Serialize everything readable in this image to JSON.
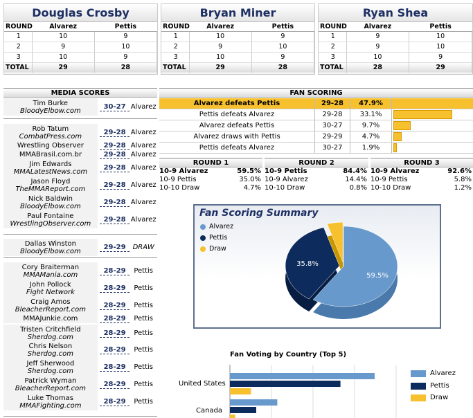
{
  "colors": {
    "alvarez": "#6899cc",
    "pettis": "#0d2b5c",
    "draw": "#f7c02e",
    "navy": "#1d2f63"
  },
  "judges": [
    {
      "name": "Douglas Crosby",
      "col_round": "ROUND",
      "col_a": "Alvarez",
      "col_b": "Pettis",
      "rounds": [
        [
          "1",
          "10",
          "9"
        ],
        [
          "2",
          "9",
          "10"
        ],
        [
          "3",
          "10",
          "9"
        ]
      ],
      "total": [
        "TOTAL",
        "29",
        "28"
      ]
    },
    {
      "name": "Bryan Miner",
      "col_round": "ROUND",
      "col_a": "Alvarez",
      "col_b": "Pettis",
      "rounds": [
        [
          "1",
          "10",
          "9"
        ],
        [
          "2",
          "9",
          "10"
        ],
        [
          "3",
          "10",
          "9"
        ]
      ],
      "total": [
        "TOTAL",
        "29",
        "28"
      ]
    },
    {
      "name": "Ryan Shea",
      "col_round": "ROUND",
      "col_a": "Alvarez",
      "col_b": "Pettis",
      "rounds": [
        [
          "1",
          "9",
          "10"
        ],
        [
          "2",
          "9",
          "10"
        ],
        [
          "3",
          "10",
          "9"
        ]
      ],
      "total": [
        "TOTAL",
        "28",
        "29"
      ]
    }
  ],
  "media": {
    "header": "MEDIA SCORES",
    "rows": [
      {
        "name": "Tim Burke",
        "outlet": "BloodyElbow.com",
        "score": "30-27",
        "winner": "Alvarez"
      },
      {
        "name": "Rob Tatum",
        "outlet": "CombatPress.com",
        "score": "29-28",
        "winner": "Alvarez"
      },
      {
        "name": "Wrestling Observer",
        "outlet": "",
        "score": "29-28",
        "winner": "Alvarez"
      },
      {
        "name": "MMABrasil.com.br",
        "outlet": "",
        "score": "29-28",
        "winner": "Alvarez"
      },
      {
        "name": "Jim Edwards",
        "outlet": "MMALatestNews.com",
        "score": "29-28",
        "winner": "Alvarez"
      },
      {
        "name": "Jason Floyd",
        "outlet": "TheMMAReport.com",
        "score": "29-28",
        "winner": "Alvarez"
      },
      {
        "name": "Nick Baldwin",
        "outlet": "BloodyElbow.com",
        "score": "29-28",
        "winner": "Alvarez"
      },
      {
        "name": "Paul Fontaine",
        "outlet": "WrestlingObserver.com",
        "score": "29-28",
        "winner": "Alvarez"
      },
      {
        "name": "Dallas Winston",
        "outlet": "BloodyElbow.com",
        "score": "29-29",
        "winner": "DRAW"
      },
      {
        "name": "Cory Braiterman",
        "outlet": "MMAMania.com",
        "score": "28-29",
        "winner": "Pettis"
      },
      {
        "name": "John Pollock",
        "outlet": "Fight Network",
        "score": "28-29",
        "winner": "Pettis"
      },
      {
        "name": "Craig Amos",
        "outlet": "BleacherReport.com",
        "score": "28-29",
        "winner": "Pettis"
      },
      {
        "name": "MMAJunkie.com",
        "outlet": "",
        "score": "28-29",
        "winner": "Pettis"
      },
      {
        "name": "Tristen Critchfield",
        "outlet": "Sherdog.com",
        "score": "28-29",
        "winner": "Pettis"
      },
      {
        "name": "Chris Nelson",
        "outlet": "Sherdog.com",
        "score": "28-29",
        "winner": "Pettis"
      },
      {
        "name": "Jeff Sherwood",
        "outlet": "Sherdog.com",
        "score": "28-29",
        "winner": "Pettis"
      },
      {
        "name": "Patrick Wyman",
        "outlet": "BleacherReport.com",
        "score": "28-29",
        "winner": "Pettis"
      },
      {
        "name": "Luke Thomas",
        "outlet": "MMAFighting.com",
        "score": "28-29",
        "winner": "Pettis"
      }
    ]
  },
  "fan": {
    "header": "FAN SCORING",
    "rows": [
      {
        "label": "Alvarez defeats Pettis",
        "score": "29-28",
        "pct": "47.9%",
        "value": 47.9
      },
      {
        "label": "Pettis defeats Alvarez",
        "score": "29-28",
        "pct": "33.1%",
        "value": 33.1
      },
      {
        "label": "Alvarez defeats Pettis",
        "score": "30-27",
        "pct": "9.7%",
        "value": 9.7
      },
      {
        "label": "Alvarez draws with Pettis",
        "score": "29-29",
        "pct": "4.7%",
        "value": 4.7
      },
      {
        "label": "Pettis defeats Alvarez",
        "score": "30-27",
        "pct": "1.9%",
        "value": 1.9
      }
    ]
  },
  "rounds": [
    {
      "title": "ROUND 1",
      "rows": [
        [
          "10-9 Alvarez",
          "59.5%"
        ],
        [
          "10-9 Pettis",
          "35.0%"
        ],
        [
          "10-10 Draw",
          "4.7%"
        ]
      ]
    },
    {
      "title": "ROUND 2",
      "rows": [
        [
          "10-9 Pettis",
          "84.4%"
        ],
        [
          "10-9 Alvarez",
          "14.4%"
        ],
        [
          "10-10 Draw",
          "0.8%"
        ]
      ]
    },
    {
      "title": "ROUND 3",
      "rows": [
        [
          "10-9 Alvarez",
          "92.6%"
        ],
        [
          "10-9 Pettis",
          "5.8%"
        ],
        [
          "10-10 Draw",
          "1.2%"
        ]
      ]
    }
  ],
  "summary": {
    "title": "Fan Scoring Summary",
    "legend": [
      "Alvarez",
      "Pettis",
      "Draw"
    ],
    "labels": [
      "59.5%",
      "35.8%"
    ]
  },
  "chart_data": [
    {
      "type": "pie",
      "title": "Fan Scoring Summary",
      "categories": [
        "Alvarez",
        "Pettis",
        "Draw"
      ],
      "values": [
        59.5,
        35.8,
        4.7
      ],
      "legend": "top-left"
    },
    {
      "type": "bar",
      "title": "Fan Voting by Country (Top 5)",
      "categories": [
        "United States",
        "Canada"
      ],
      "series": [
        {
          "name": "Alvarez",
          "values": [
            55,
            18
          ]
        },
        {
          "name": "Pettis",
          "values": [
            42,
            10
          ]
        },
        {
          "name": "Draw",
          "values": [
            8,
            2
          ]
        }
      ],
      "legend": "right"
    }
  ],
  "country": {
    "title": "Fan Voting by Country (Top 5)",
    "labels": [
      "United States",
      "Canada"
    ],
    "legend": [
      "Alvarez",
      "Pettis",
      "Draw"
    ]
  }
}
